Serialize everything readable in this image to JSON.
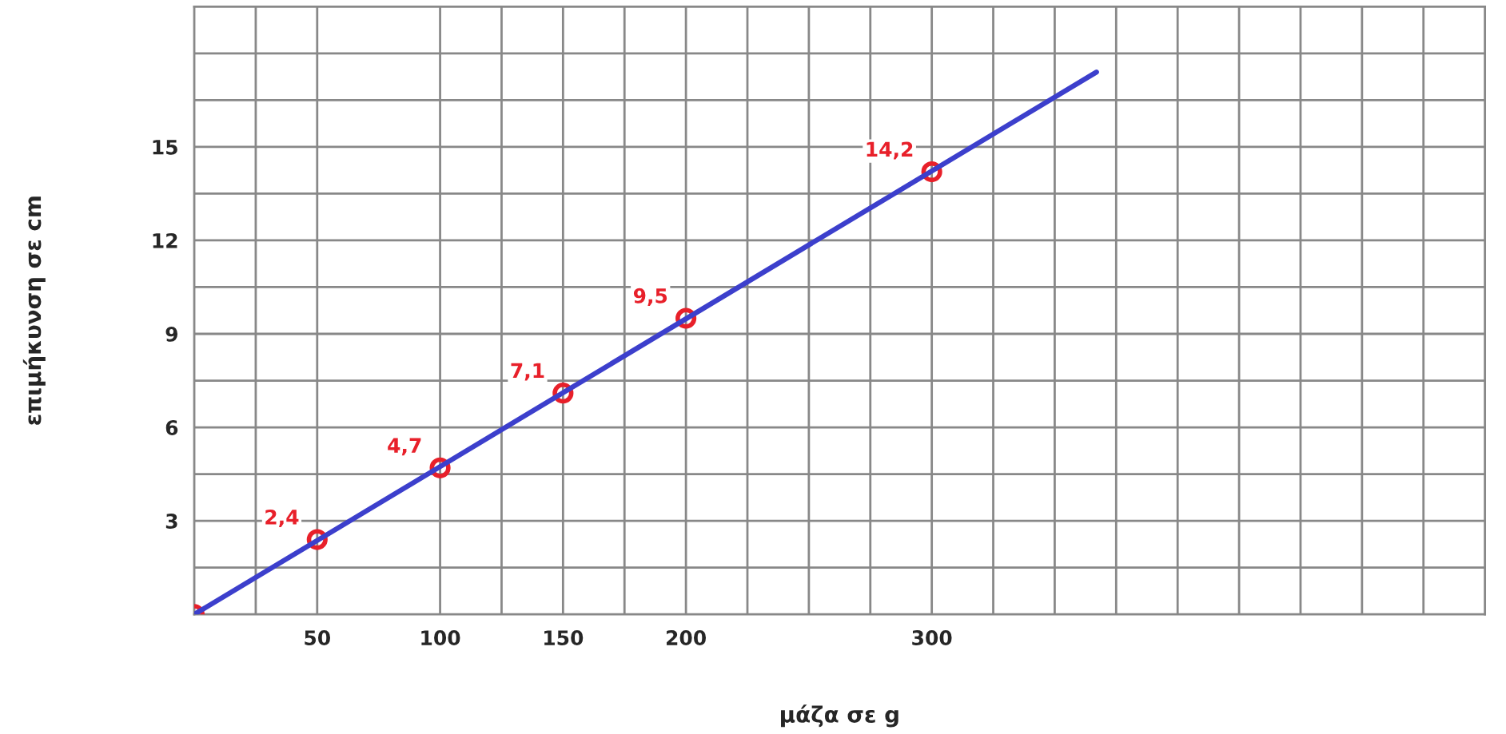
{
  "chart_data": {
    "type": "scatter",
    "xlabel": "μάζα σε g",
    "ylabel": "επιμήκυνση σε cm",
    "series": [
      {
        "color": "#e8202a",
        "x": [
          0,
          50,
          100,
          150,
          200,
          300
        ],
        "values": [
          0,
          2.4,
          4.7,
          7.1,
          9.5,
          14.2
        ],
        "value_labels": [
          null,
          "2,4",
          "4,7",
          "7,1",
          "9,5",
          "14,2"
        ],
        "marker": "circle"
      },
      {
        "type": "line",
        "color": "#3c3fcc",
        "x": [
          0,
          367
        ],
        "values": [
          0,
          17.4
        ],
        "line_style": "solid"
      }
    ],
    "xlim": [
      0,
      525
    ],
    "ylim": [
      0,
      19.5
    ],
    "xticks": [
      {
        "value": 25,
        "label": null
      },
      50,
      100,
      {
        "value": 125,
        "label": null
      },
      150,
      {
        "value": 175,
        "label": null
      },
      200,
      {
        "value": 225,
        "label": null
      },
      {
        "value": 250,
        "label": null
      },
      {
        "value": 275,
        "label": null
      },
      300,
      {
        "value": 325,
        "label": null
      },
      {
        "value": 350,
        "label": null
      },
      {
        "value": 375,
        "label": null
      },
      {
        "value": 400,
        "label": null
      },
      {
        "value": 425,
        "label": null
      },
      {
        "value": 450,
        "label": null
      },
      {
        "value": 475,
        "label": null
      },
      {
        "value": 500,
        "label": null
      }
    ],
    "yticks": [
      {
        "value": 1.5,
        "label": null
      },
      3,
      {
        "value": 4.5,
        "label": null
      },
      6,
      {
        "value": 7.5,
        "label": null
      },
      9,
      {
        "value": 10.5,
        "label": null
      },
      12,
      {
        "value": 13.5,
        "label": null
      },
      15,
      {
        "value": 16.5,
        "label": null
      },
      {
        "value": 18,
        "label": null
      }
    ],
    "grid": true,
    "legend": false
  }
}
